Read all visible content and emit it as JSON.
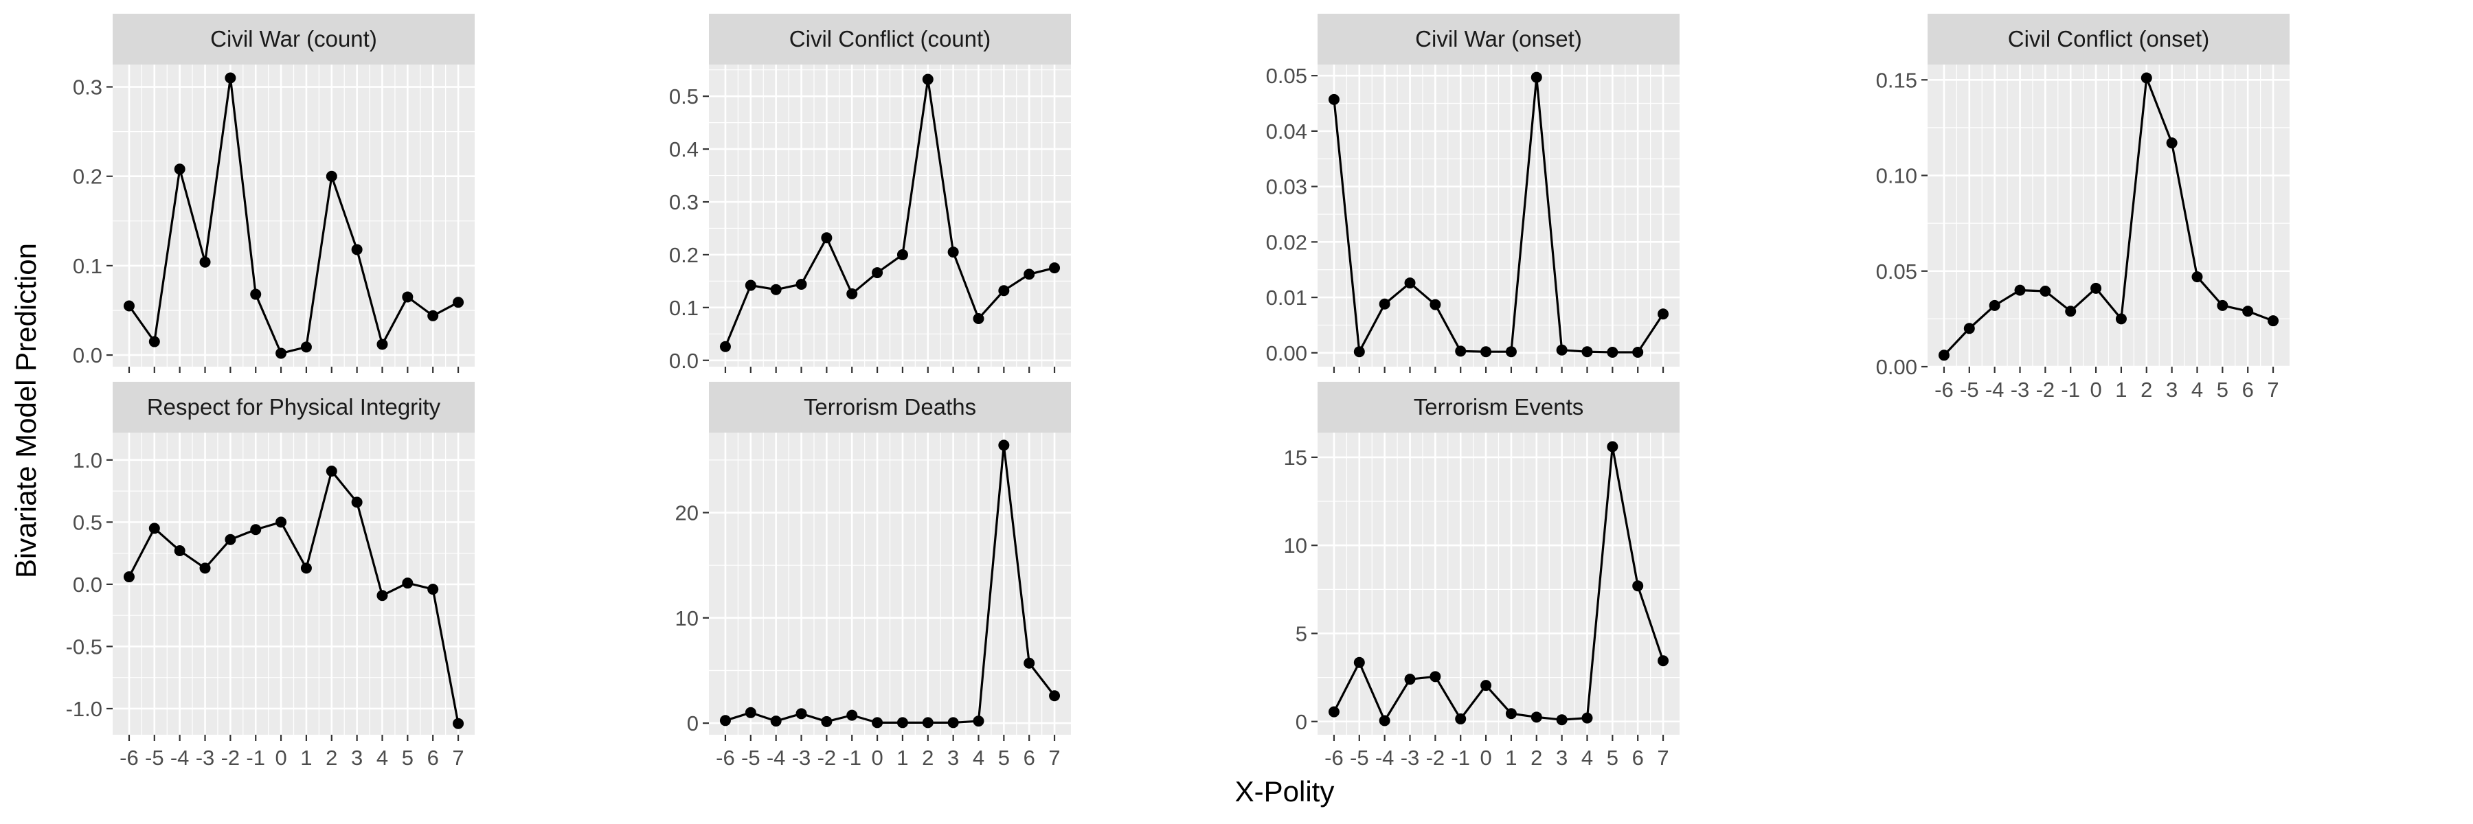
{
  "xlabel": "X-Polity",
  "ylabel": "Bivariate Model Prediction",
  "colors": {
    "panel": "#EBEBEB",
    "strip": "#D9D9D9",
    "grid": "#FFFFFF",
    "series": "#000000"
  },
  "chart_data": [
    {
      "type": "line",
      "title": "Civil War (count)",
      "x": [
        -6,
        -5,
        -4,
        -3,
        -2,
        -1,
        0,
        1,
        2,
        3,
        4,
        5,
        6,
        7
      ],
      "y": [
        0.055,
        0.015,
        0.208,
        0.104,
        0.31,
        0.068,
        0.002,
        0.009,
        0.2,
        0.118,
        0.012,
        0.065,
        0.044,
        0.059
      ],
      "xlim": [
        -6.65,
        7.65
      ],
      "ylim": [
        -0.013,
        0.325
      ],
      "yticks": [
        0.0,
        0.1,
        0.2,
        0.3
      ],
      "ytick_labels": [
        "0.0",
        "0.1",
        "0.2",
        "0.3"
      ],
      "xticks": [
        -6,
        -5,
        -4,
        -3,
        -2,
        -1,
        0,
        1,
        2,
        3,
        4,
        5,
        6,
        7
      ],
      "xtick_labels": [],
      "grid": true
    },
    {
      "type": "line",
      "title": "Civil Conflict (count)",
      "x": [
        -6,
        -5,
        -4,
        -3,
        -2,
        -1,
        0,
        1,
        2,
        3,
        4,
        5,
        6,
        7
      ],
      "y": [
        0.026,
        0.142,
        0.134,
        0.144,
        0.232,
        0.126,
        0.166,
        0.2,
        0.532,
        0.205,
        0.079,
        0.132,
        0.163,
        0.175
      ],
      "xlim": [
        -6.65,
        7.65
      ],
      "ylim": [
        -0.012,
        0.56
      ],
      "yticks": [
        0.0,
        0.1,
        0.2,
        0.3,
        0.4,
        0.5
      ],
      "ytick_labels": [
        "0.0",
        "0.1",
        "0.2",
        "0.3",
        "0.4",
        "0.5"
      ],
      "xticks": [
        -6,
        -5,
        -4,
        -3,
        -2,
        -1,
        0,
        1,
        2,
        3,
        4,
        5,
        6,
        7
      ],
      "xtick_labels": [],
      "grid": true
    },
    {
      "type": "line",
      "title": "Civil War (onset)",
      "x": [
        -6,
        -5,
        -4,
        -3,
        -2,
        -1,
        0,
        1,
        2,
        3,
        4,
        5,
        6,
        7
      ],
      "y": [
        0.0457,
        0.0002,
        0.0088,
        0.0126,
        0.0087,
        0.0003,
        0.0002,
        0.0002,
        0.0497,
        0.0005,
        0.0002,
        0.0001,
        0.0001,
        0.007
      ],
      "xlim": [
        -6.65,
        7.65
      ],
      "ylim": [
        -0.0025,
        0.052
      ],
      "yticks": [
        0.0,
        0.01,
        0.02,
        0.03,
        0.04,
        0.05
      ],
      "ytick_labels": [
        "0.00",
        "0.01",
        "0.02",
        "0.03",
        "0.04",
        "0.05"
      ],
      "xticks": [
        -6,
        -5,
        -4,
        -3,
        -2,
        -1,
        0,
        1,
        2,
        3,
        4,
        5,
        6,
        7
      ],
      "xtick_labels": [],
      "grid": true
    },
    {
      "type": "line",
      "title": "Civil Conflict (onset)",
      "x": [
        -6,
        -5,
        -4,
        -3,
        -2,
        -1,
        0,
        1,
        2,
        3,
        4,
        5,
        6,
        7
      ],
      "y": [
        0.006,
        0.02,
        0.032,
        0.04,
        0.0395,
        0.029,
        0.041,
        0.025,
        0.151,
        0.117,
        0.047,
        0.032,
        0.029,
        0.024
      ],
      "xlim": [
        -6.65,
        7.65
      ],
      "ylim": [
        0.0,
        0.158
      ],
      "yticks": [
        0.0,
        0.05,
        0.1,
        0.15
      ],
      "ytick_labels": [
        "0.00",
        "0.05",
        "0.10",
        "0.15"
      ],
      "xticks": [
        -6,
        -5,
        -4,
        -3,
        -2,
        -1,
        0,
        1,
        2,
        3,
        4,
        5,
        6,
        7
      ],
      "xtick_labels": [
        "-6",
        "-5",
        "-4",
        "-3",
        "-2",
        "-1",
        "0",
        "1",
        "2",
        "3",
        "4",
        "5",
        "6",
        "7"
      ],
      "grid": true
    },
    {
      "type": "line",
      "title": "Respect for Physical Integrity",
      "x": [
        -6,
        -5,
        -4,
        -3,
        -2,
        -1,
        0,
        1,
        2,
        3,
        4,
        5,
        6,
        7
      ],
      "y": [
        0.06,
        0.45,
        0.27,
        0.13,
        0.36,
        0.44,
        0.5,
        0.13,
        0.91,
        0.66,
        -0.09,
        0.01,
        -0.04,
        -1.12
      ],
      "xlim": [
        -6.65,
        7.65
      ],
      "ylim": [
        -1.21,
        1.22
      ],
      "yticks": [
        -1.0,
        -0.5,
        0.0,
        0.5,
        1.0
      ],
      "ytick_labels": [
        "-1.0",
        "-0.5",
        "0.0",
        "0.5",
        "1.0"
      ],
      "xticks": [
        -6,
        -5,
        -4,
        -3,
        -2,
        -1,
        0,
        1,
        2,
        3,
        4,
        5,
        6,
        7
      ],
      "xtick_labels": [
        "-6",
        "-5",
        "-4",
        "-3",
        "-2",
        "-1",
        "0",
        "1",
        "2",
        "3",
        "4",
        "5",
        "6",
        "7"
      ],
      "grid": true
    },
    {
      "type": "line",
      "title": "Terrorism Deaths",
      "x": [
        -6,
        -5,
        -4,
        -3,
        -2,
        -1,
        0,
        1,
        2,
        3,
        4,
        5,
        6,
        7
      ],
      "y": [
        0.25,
        1.0,
        0.2,
        0.9,
        0.15,
        0.75,
        0.05,
        0.05,
        0.05,
        0.05,
        0.2,
        26.4,
        5.7,
        2.6
      ],
      "xlim": [
        -6.65,
        7.65
      ],
      "ylim": [
        -1.1,
        27.6
      ],
      "yticks": [
        0,
        10,
        20
      ],
      "ytick_labels": [
        "0",
        "10",
        "20"
      ],
      "xticks": [
        -6,
        -5,
        -4,
        -3,
        -2,
        -1,
        0,
        1,
        2,
        3,
        4,
        5,
        6,
        7
      ],
      "xtick_labels": [
        "-6",
        "-5",
        "-4",
        "-3",
        "-2",
        "-1",
        "0",
        "1",
        "2",
        "3",
        "4",
        "5",
        "6",
        "7"
      ],
      "grid": true
    },
    {
      "type": "line",
      "title": "Terrorism Events",
      "x": [
        -6,
        -5,
        -4,
        -3,
        -2,
        -1,
        0,
        1,
        2,
        3,
        4,
        5,
        6,
        7
      ],
      "y": [
        0.55,
        3.35,
        0.05,
        2.4,
        2.55,
        0.15,
        2.05,
        0.45,
        0.25,
        0.1,
        0.2,
        15.6,
        7.7,
        3.45
      ],
      "xlim": [
        -6.65,
        7.65
      ],
      "ylim": [
        -0.75,
        16.4
      ],
      "yticks": [
        0,
        5,
        10,
        15
      ],
      "ytick_labels": [
        "0",
        "5",
        "10",
        "15"
      ],
      "xticks": [
        -6,
        -5,
        -4,
        -3,
        -2,
        -1,
        0,
        1,
        2,
        3,
        4,
        5,
        6,
        7
      ],
      "xtick_labels": [
        "-6",
        "-5",
        "-4",
        "-3",
        "-2",
        "-1",
        "0",
        "1",
        "2",
        "3",
        "4",
        "5",
        "6",
        "7"
      ],
      "grid": true
    }
  ]
}
